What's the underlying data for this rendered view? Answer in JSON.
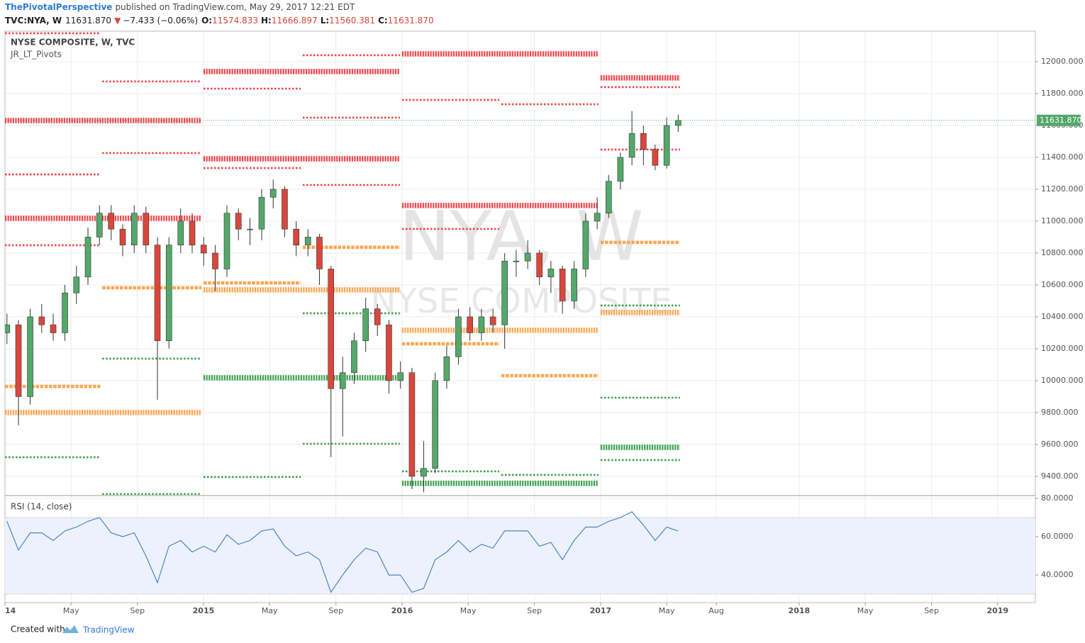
{
  "header": {
    "author": "ThePivotalPerspective",
    "published": "published on TradingView.com, May 29, 2017 12:21 EDT",
    "symbol": "TVC:NYA, W",
    "last": "11631.870",
    "arrow": "▼",
    "change": "−7.433 (−0.06%)",
    "ohlc": [
      {
        "key": "O:",
        "value": "11574.833"
      },
      {
        "key": "H:",
        "value": "11666.897"
      },
      {
        "key": "L:",
        "value": "11560.381"
      },
      {
        "key": "C:",
        "value": "11631.870"
      }
    ]
  },
  "footer": {
    "created": "Created with",
    "brand": "TradingView"
  },
  "chart_data": [
    {
      "type": "candlestick",
      "title": "NYSE COMPOSITE, W, TVC",
      "indicator": "JR_LT_Pivots",
      "watermark": [
        "NYA, W",
        "NYSE COMPOSITE"
      ],
      "up_color": "#53a86a",
      "down_color": "#d9473c",
      "xlim": [
        2014.0,
        2019.19
      ],
      "ylim": [
        9284,
        12191
      ],
      "yticks": [
        {
          "value": 9400,
          "label": "9400.000"
        },
        {
          "value": 9600,
          "label": "9600.000"
        },
        {
          "value": 9800,
          "label": "9800.000"
        },
        {
          "value": 10000,
          "label": "10000.000"
        },
        {
          "value": 10200,
          "label": "10200.000"
        },
        {
          "value": 10400,
          "label": "10400.000"
        },
        {
          "value": 10600,
          "label": "10600.000"
        },
        {
          "value": 10800,
          "label": "10800.000"
        },
        {
          "value": 11000,
          "label": "11000.000"
        },
        {
          "value": 11200,
          "label": "11200.000"
        },
        {
          "value": 11400,
          "label": "11400.000"
        },
        {
          "value": 11600,
          "label": "11600.000"
        },
        {
          "value": 11800,
          "label": "11800.000"
        },
        {
          "value": 12000,
          "label": "12000.000"
        }
      ],
      "grid": true,
      "last_price": {
        "value": 11631.87,
        "label": "11631.870",
        "color": "#53a86a"
      },
      "x": [
        2014.01,
        2014.068,
        2014.127,
        2014.185,
        2014.243,
        2014.302,
        2014.36,
        2014.418,
        2014.476,
        2014.535,
        2014.593,
        2014.651,
        2014.71,
        2014.768,
        2014.826,
        2014.885,
        2014.943,
        2015.001,
        2015.059,
        2015.118,
        2015.176,
        2015.234,
        2015.293,
        2015.351,
        2015.409,
        2015.467,
        2015.526,
        2015.584,
        2015.642,
        2015.701,
        2015.759,
        2015.817,
        2015.876,
        2015.934,
        2015.992,
        2016.05,
        2016.109,
        2016.167,
        2016.225,
        2016.284,
        2016.342,
        2016.4,
        2016.458,
        2016.517,
        2016.575,
        2016.633,
        2016.692,
        2016.75,
        2016.808,
        2016.867,
        2016.925,
        2016.983,
        2017.041,
        2017.1,
        2017.158,
        2017.216,
        2017.275,
        2017.333,
        2017.391
      ],
      "open": [
        10300,
        10350,
        9900,
        10400,
        10350,
        10300,
        10550,
        10650,
        10900,
        11050,
        10950,
        10850,
        11050,
        10850,
        10250,
        10850,
        11000,
        10850,
        10800,
        10700,
        11050,
        10950,
        10950,
        11150,
        11200,
        10950,
        10850,
        10900,
        10700,
        9950,
        10050,
        10250,
        10450,
        10350,
        10000,
        10050,
        9400,
        9450,
        10000,
        10150,
        10400,
        10300,
        10400,
        10350,
        10750,
        10750,
        10800,
        10650,
        10700,
        10500,
        10700,
        11000,
        11050,
        11250,
        11400,
        11550,
        11450,
        11350,
        11600
      ],
      "high": [
        10420,
        10380,
        10450,
        10480,
        10420,
        10600,
        10720,
        10960,
        11100,
        11100,
        10980,
        11100,
        11090,
        10900,
        10900,
        11080,
        11050,
        10900,
        10850,
        11100,
        11080,
        11020,
        11200,
        11260,
        11220,
        11000,
        10950,
        10920,
        10720,
        10150,
        10300,
        10520,
        10480,
        10380,
        10120,
        10080,
        9620,
        10050,
        10220,
        10450,
        10460,
        10450,
        10450,
        10800,
        10820,
        10880,
        10820,
        10750,
        10720,
        10750,
        11050,
        11150,
        11290,
        11430,
        11690,
        11600,
        11480,
        11650,
        11667
      ],
      "low": [
        10230,
        9720,
        9850,
        10300,
        10250,
        10250,
        10480,
        10600,
        10850,
        10880,
        10780,
        10800,
        10800,
        9880,
        10200,
        10800,
        10800,
        10720,
        10560,
        10650,
        10880,
        10850,
        10880,
        11080,
        10900,
        10780,
        10780,
        10600,
        9520,
        9650,
        9980,
        10180,
        10280,
        9920,
        9950,
        9320,
        9300,
        9420,
        9950,
        10100,
        10250,
        10250,
        10300,
        10200,
        10650,
        10700,
        10600,
        10550,
        10420,
        10450,
        10650,
        10950,
        11020,
        11200,
        11350,
        11350,
        11320,
        11330,
        11560
      ],
      "close": [
        10350,
        9900,
        10400,
        10350,
        10300,
        10550,
        10650,
        10900,
        11050,
        10950,
        10850,
        11050,
        10850,
        10250,
        10850,
        11000,
        10850,
        10800,
        10700,
        11050,
        10950,
        10950,
        11150,
        11200,
        10950,
        10850,
        10900,
        10700,
        9950,
        10050,
        10250,
        10450,
        10350,
        10000,
        10050,
        9400,
        9450,
        10000,
        10150,
        10400,
        10300,
        10400,
        10350,
        10750,
        10750,
        10800,
        10650,
        10700,
        10500,
        10700,
        11000,
        11050,
        11250,
        11400,
        11550,
        11450,
        11350,
        11600,
        11632
      ],
      "pivots": [
        {
          "color": "#f0464b",
          "levels": [
            {
              "value": 12178,
              "x": [
                2014.0,
                2014.48
              ],
              "style": "thin"
            },
            {
              "value": 11876,
              "x": [
                2014.49,
                2014.99
              ],
              "style": "thin"
            },
            {
              "value": 11631,
              "x": [
                2014.0,
                2014.99
              ],
              "style": "thick"
            },
            {
              "value": 11427,
              "x": [
                2014.49,
                2014.99
              ],
              "style": "thin"
            },
            {
              "value": 11293,
              "x": [
                2014.0,
                2014.48
              ],
              "style": "thin"
            },
            {
              "value": 11018,
              "x": [
                2014.0,
                2014.99
              ],
              "style": "thick"
            },
            {
              "value": 10849,
              "x": [
                2014.0,
                2014.48
              ],
              "style": "thin"
            },
            {
              "value": 12040,
              "x": [
                2015.5,
                2015.99
              ],
              "style": "thin"
            },
            {
              "value": 11938,
              "x": [
                2015.0,
                2015.99
              ],
              "style": "thick"
            },
            {
              "value": 11831,
              "x": [
                2015.0,
                2015.49
              ],
              "style": "thin"
            },
            {
              "value": 11649,
              "x": [
                2015.5,
                2015.99
              ],
              "style": "thin"
            },
            {
              "value": 11391,
              "x": [
                2015.0,
                2015.99
              ],
              "style": "thick"
            },
            {
              "value": 11333,
              "x": [
                2015.0,
                2015.49
              ],
              "style": "thin"
            },
            {
              "value": 11227,
              "x": [
                2015.5,
                2015.99
              ],
              "style": "thin"
            },
            {
              "value": 10951,
              "x": [
                2016.0,
                2016.49
              ],
              "style": "thin"
            },
            {
              "value": 12049,
              "x": [
                2016.0,
                2016.99
              ],
              "style": "thick"
            },
            {
              "value": 11760,
              "x": [
                2016.0,
                2016.49
              ],
              "style": "thin"
            },
            {
              "value": 11733,
              "x": [
                2016.5,
                2016.99
              ],
              "style": "thin"
            },
            {
              "value": 11098,
              "x": [
                2016.0,
                2016.99
              ],
              "style": "thick"
            },
            {
              "value": 11898,
              "x": [
                2017.0,
                2017.4
              ],
              "style": "thick"
            },
            {
              "value": 11840,
              "x": [
                2017.0,
                2017.4
              ],
              "style": "thin"
            },
            {
              "value": 11449,
              "x": [
                2017.0,
                2017.4
              ],
              "style": "thin"
            }
          ]
        },
        {
          "color": "#ffa550",
          "levels": [
            {
              "value": 9964,
              "x": [
                2014.0,
                2014.48
              ],
              "style": "medium"
            },
            {
              "value": 9800,
              "x": [
                2014.0,
                2014.99
              ],
              "style": "thick"
            },
            {
              "value": 10582,
              "x": [
                2014.49,
                2014.99
              ],
              "style": "medium"
            },
            {
              "value": 10836,
              "x": [
                2015.5,
                2015.99
              ],
              "style": "medium"
            },
            {
              "value": 10613,
              "x": [
                2015.0,
                2015.49
              ],
              "style": "medium"
            },
            {
              "value": 10569,
              "x": [
                2015.0,
                2015.99
              ],
              "style": "thick"
            },
            {
              "value": 10316,
              "x": [
                2016.0,
                2016.99
              ],
              "style": "thick"
            },
            {
              "value": 10231,
              "x": [
                2016.0,
                2016.49
              ],
              "style": "medium"
            },
            {
              "value": 10031,
              "x": [
                2016.5,
                2016.99
              ],
              "style": "medium"
            },
            {
              "value": 10867,
              "x": [
                2017.0,
                2017.4
              ],
              "style": "medium"
            },
            {
              "value": 10427,
              "x": [
                2017.0,
                2017.4
              ],
              "style": "thick"
            }
          ]
        },
        {
          "color": "#3ea24f",
          "levels": [
            {
              "value": 9520,
              "x": [
                2014.0,
                2014.48
              ],
              "style": "thin"
            },
            {
              "value": 9289,
              "x": [
                2014.49,
                2014.99
              ],
              "style": "thin"
            },
            {
              "value": 10138,
              "x": [
                2014.49,
                2014.99
              ],
              "style": "thin"
            },
            {
              "value": 10018,
              "x": [
                2015.0,
                2015.99
              ],
              "style": "thick"
            },
            {
              "value": 10422,
              "x": [
                2015.5,
                2015.99
              ],
              "style": "thin"
            },
            {
              "value": 9604,
              "x": [
                2015.5,
                2015.99
              ],
              "style": "thin"
            },
            {
              "value": 9396,
              "x": [
                2015.0,
                2015.49
              ],
              "style": "thin"
            },
            {
              "value": 9431,
              "x": [
                2016.0,
                2016.49
              ],
              "style": "thin"
            },
            {
              "value": 9409,
              "x": [
                2016.5,
                2016.99
              ],
              "style": "thin"
            },
            {
              "value": 9356,
              "x": [
                2016.0,
                2016.99
              ],
              "style": "thick"
            },
            {
              "value": 10471,
              "x": [
                2017.0,
                2017.4
              ],
              "style": "thin"
            },
            {
              "value": 9893,
              "x": [
                2017.0,
                2017.4
              ],
              "style": "thin"
            },
            {
              "value": 9582,
              "x": [
                2017.0,
                2017.4
              ],
              "style": "thick"
            },
            {
              "value": 9502,
              "x": [
                2017.0,
                2017.4
              ],
              "style": "thin"
            }
          ]
        }
      ]
    },
    {
      "type": "line",
      "title": "RSI (14, close)",
      "color": "#4a86c8",
      "band": [
        30,
        70
      ],
      "band_color": "#edf1fb",
      "xlim": [
        2014.0,
        2019.19
      ],
      "ylim": [
        25.6,
        81.1
      ],
      "yticks": [
        {
          "value": 40,
          "label": "40.0000"
        },
        {
          "value": 60,
          "label": "60.0000"
        },
        {
          "value": 80,
          "label": "80.0000"
        }
      ],
      "xticks": [
        {
          "value": 2014.0,
          "label": "14"
        },
        {
          "value": 2014.333,
          "label": "May"
        },
        {
          "value": 2014.667,
          "label": "Sep"
        },
        2015,
        {
          "value": 2015.333,
          "label": "May"
        },
        {
          "value": 2015.667,
          "label": "Sep"
        },
        2016,
        {
          "value": 2016.333,
          "label": "May"
        },
        {
          "value": 2016.667,
          "label": "Sep"
        },
        2017,
        {
          "value": 2017.333,
          "label": "May"
        },
        {
          "value": 2017.583,
          "label": "Aug"
        },
        2018,
        {
          "value": 2018.333,
          "label": "May"
        },
        {
          "value": 2018.667,
          "label": "Sep"
        },
        2019
      ],
      "x": [
        2014.01,
        2014.068,
        2014.127,
        2014.185,
        2014.243,
        2014.302,
        2014.36,
        2014.418,
        2014.476,
        2014.535,
        2014.593,
        2014.651,
        2014.71,
        2014.768,
        2014.826,
        2014.885,
        2014.943,
        2015.001,
        2015.059,
        2015.118,
        2015.176,
        2015.234,
        2015.293,
        2015.351,
        2015.409,
        2015.467,
        2015.526,
        2015.584,
        2015.642,
        2015.701,
        2015.759,
        2015.817,
        2015.876,
        2015.934,
        2015.992,
        2016.05,
        2016.109,
        2016.167,
        2016.225,
        2016.284,
        2016.342,
        2016.4,
        2016.458,
        2016.517,
        2016.575,
        2016.633,
        2016.692,
        2016.75,
        2016.808,
        2016.867,
        2016.925,
        2016.983,
        2017.041,
        2017.1,
        2017.158,
        2017.216,
        2017.275,
        2017.333,
        2017.391
      ],
      "values": [
        68,
        53,
        62,
        62,
        58,
        63,
        65,
        68,
        70,
        62,
        60,
        62,
        50,
        36,
        55,
        58,
        52,
        55,
        52,
        61,
        56,
        58,
        63,
        64,
        55,
        50,
        52,
        48,
        31,
        40,
        48,
        54,
        52,
        40,
        40,
        31,
        33,
        48,
        52,
        58,
        52,
        56,
        54,
        63,
        63,
        63,
        55,
        57,
        48,
        58,
        65,
        65,
        68,
        70,
        73,
        66,
        58,
        65,
        63
      ]
    }
  ]
}
